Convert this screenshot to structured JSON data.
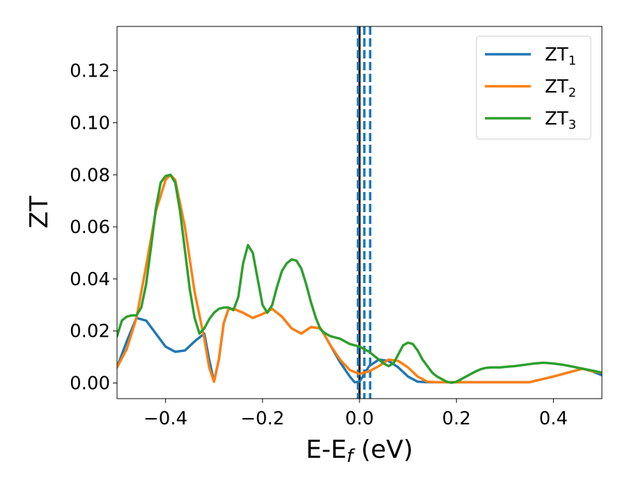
{
  "chart_data": {
    "type": "line",
    "xlabel": "E-E",
    "xlabel_sub": "f",
    "xlabel_suffix": " (eV)",
    "ylabel": "ZT",
    "xlim": [
      -0.5,
      0.5
    ],
    "ylim": [
      -0.006,
      0.137
    ],
    "xticks": [
      -0.4,
      -0.2,
      0.0,
      0.2,
      0.4
    ],
    "xtick_labels": [
      "−0.4",
      "−0.2",
      "0.0",
      "0.2",
      "0.4"
    ],
    "yticks": [
      0.0,
      0.02,
      0.04,
      0.06,
      0.08,
      0.1,
      0.12
    ],
    "ytick_labels": [
      "0.00",
      "0.02",
      "0.04",
      "0.06",
      "0.08",
      "0.10",
      "0.12"
    ],
    "grid": false,
    "legend_position": "top-right",
    "vertical_lines": [
      {
        "x": 0.0,
        "style": "solid",
        "color": "#000000"
      },
      {
        "x": -0.003,
        "style": "dashed",
        "color": "#1f77b4"
      },
      {
        "x": 0.01,
        "style": "dashed",
        "color": "#1f77b4"
      },
      {
        "x": 0.022,
        "style": "dashed",
        "color": "#1f77b4"
      }
    ],
    "series": [
      {
        "name": "ZT",
        "name_sub": "1",
        "color": "#1f77b4",
        "x": [
          -0.5,
          -0.48,
          -0.46,
          -0.44,
          -0.42,
          -0.4,
          -0.38,
          -0.36,
          -0.34,
          -0.32,
          -0.31,
          -0.3,
          -0.29,
          -0.28,
          -0.27,
          -0.26,
          -0.24,
          -0.22,
          -0.2,
          -0.18,
          -0.16,
          -0.14,
          -0.12,
          -0.1,
          -0.08,
          -0.06,
          -0.04,
          -0.02,
          -0.01,
          0.0,
          0.01,
          0.02,
          0.04,
          0.06,
          0.08,
          0.1,
          0.12,
          0.14,
          0.16,
          0.18,
          0.2,
          0.25,
          0.3,
          0.35,
          0.4,
          0.44,
          0.46,
          0.48,
          0.5
        ],
        "y": [
          0.006,
          0.016,
          0.025,
          0.024,
          0.019,
          0.014,
          0.012,
          0.0125,
          0.016,
          0.019,
          0.009,
          0.0005,
          0.009,
          0.023,
          0.0285,
          0.0285,
          0.027,
          0.025,
          0.0265,
          0.0285,
          0.0255,
          0.021,
          0.019,
          0.0215,
          0.021,
          0.0145,
          0.008,
          0.0025,
          0.0003,
          0.0005,
          0.0035,
          0.0065,
          0.009,
          0.0085,
          0.006,
          0.0025,
          0.0005,
          0.0003,
          0.0003,
          0.0003,
          0.0003,
          0.0003,
          0.0003,
          0.0003,
          0.0025,
          0.0045,
          0.0055,
          0.0045,
          0.003
        ]
      },
      {
        "name": "ZT",
        "name_sub": "2",
        "color": "#ff7f0e",
        "x": [
          -0.5,
          -0.48,
          -0.46,
          -0.44,
          -0.42,
          -0.4,
          -0.39,
          -0.38,
          -0.36,
          -0.34,
          -0.32,
          -0.31,
          -0.3,
          -0.29,
          -0.28,
          -0.27,
          -0.26,
          -0.24,
          -0.22,
          -0.2,
          -0.18,
          -0.16,
          -0.14,
          -0.12,
          -0.1,
          -0.08,
          -0.06,
          -0.04,
          -0.02,
          0.0,
          0.02,
          0.04,
          0.06,
          0.08,
          0.1,
          0.12,
          0.14,
          0.16,
          0.18,
          0.2,
          0.25,
          0.3,
          0.35,
          0.4,
          0.44,
          0.46,
          0.48,
          0.5
        ],
        "y": [
          0.006,
          0.013,
          0.025,
          0.045,
          0.066,
          0.078,
          0.08,
          0.078,
          0.06,
          0.035,
          0.017,
          0.006,
          0.0005,
          0.009,
          0.023,
          0.0285,
          0.0285,
          0.027,
          0.025,
          0.0265,
          0.0285,
          0.0255,
          0.021,
          0.019,
          0.0215,
          0.021,
          0.0145,
          0.009,
          0.005,
          0.0035,
          0.0045,
          0.0065,
          0.009,
          0.0085,
          0.006,
          0.0025,
          0.0005,
          0.0003,
          0.0003,
          0.0003,
          0.0003,
          0.0003,
          0.0003,
          0.0025,
          0.0045,
          0.0055,
          0.0045,
          0.004
        ]
      },
      {
        "name": "ZT",
        "name_sub": "3",
        "color": "#2ca02c",
        "x": [
          -0.5,
          -0.49,
          -0.48,
          -0.47,
          -0.46,
          -0.45,
          -0.44,
          -0.43,
          -0.42,
          -0.41,
          -0.4,
          -0.39,
          -0.38,
          -0.37,
          -0.36,
          -0.35,
          -0.34,
          -0.33,
          -0.32,
          -0.31,
          -0.3,
          -0.29,
          -0.28,
          -0.27,
          -0.26,
          -0.25,
          -0.24,
          -0.23,
          -0.22,
          -0.21,
          -0.2,
          -0.19,
          -0.18,
          -0.17,
          -0.16,
          -0.15,
          -0.14,
          -0.13,
          -0.12,
          -0.11,
          -0.1,
          -0.09,
          -0.08,
          -0.07,
          -0.06,
          -0.05,
          -0.04,
          -0.03,
          -0.02,
          -0.01,
          0.0,
          0.01,
          0.02,
          0.03,
          0.04,
          0.05,
          0.06,
          0.07,
          0.08,
          0.09,
          0.1,
          0.11,
          0.12,
          0.13,
          0.14,
          0.15,
          0.16,
          0.17,
          0.18,
          0.19,
          0.2,
          0.21,
          0.22,
          0.23,
          0.24,
          0.25,
          0.26,
          0.27,
          0.28,
          0.29,
          0.3,
          0.32,
          0.34,
          0.36,
          0.38,
          0.4,
          0.42,
          0.44,
          0.46,
          0.48,
          0.5
        ],
        "y": [
          0.018,
          0.024,
          0.0255,
          0.026,
          0.026,
          0.029,
          0.038,
          0.052,
          0.067,
          0.077,
          0.0795,
          0.08,
          0.077,
          0.066,
          0.051,
          0.036,
          0.025,
          0.019,
          0.021,
          0.0245,
          0.027,
          0.0285,
          0.029,
          0.029,
          0.028,
          0.033,
          0.046,
          0.053,
          0.05,
          0.04,
          0.03,
          0.027,
          0.03,
          0.037,
          0.043,
          0.046,
          0.0475,
          0.047,
          0.044,
          0.038,
          0.031,
          0.025,
          0.0205,
          0.019,
          0.018,
          0.0175,
          0.017,
          0.016,
          0.015,
          0.0145,
          0.014,
          0.013,
          0.012,
          0.0105,
          0.009,
          0.0075,
          0.0065,
          0.0075,
          0.011,
          0.0145,
          0.0155,
          0.015,
          0.0125,
          0.009,
          0.0065,
          0.004,
          0.0025,
          0.0015,
          0.0005,
          0.0001,
          0.0005,
          0.0015,
          0.0025,
          0.0035,
          0.0045,
          0.0053,
          0.0058,
          0.006,
          0.006,
          0.006,
          0.0062,
          0.0065,
          0.007,
          0.0075,
          0.0078,
          0.0075,
          0.007,
          0.0063,
          0.0055,
          0.0048,
          0.004
        ]
      }
    ]
  }
}
